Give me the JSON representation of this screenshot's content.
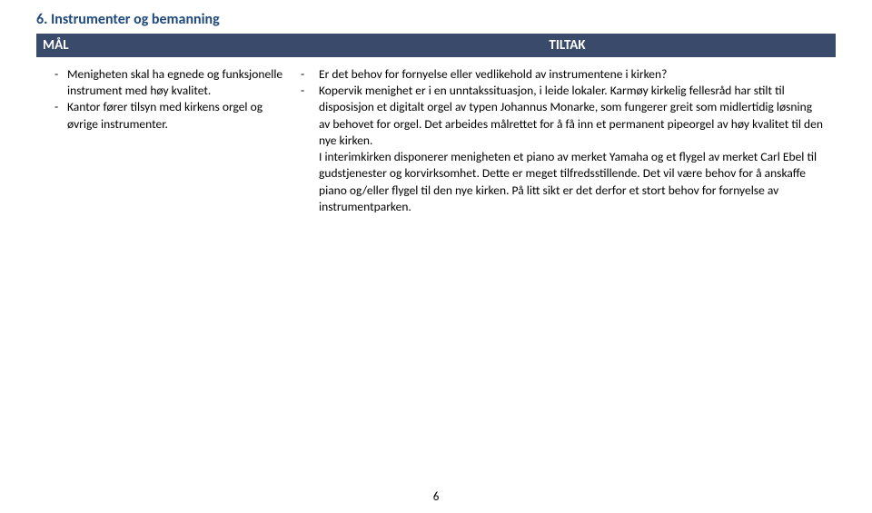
{
  "section": {
    "heading": "6.  Instrumenter og bemanning",
    "heading_color": "#1f497d",
    "header": {
      "left_label": "MÅL",
      "right_label": "TILTAK",
      "bg_color": "#3a4a6b",
      "text_color": "#ffffff"
    },
    "left_items": [
      "Menigheten skal ha egnede og funksjonelle instrument med høy kvalitet.",
      "Kantor fører tilsyn med kirkens orgel og øvrige instrumenter."
    ],
    "right_items": [
      "Er det behov for fornyelse eller vedlikehold av instrumentene i kirken?",
      "Kopervik menighet er i en unntakssituasjon, i leide lokaler. Karmøy kirkelig fellesråd har stilt til disposisjon et digitalt orgel av typen Johannus Monarke, som fungerer greit som midlertidig løsning av behovet for orgel. Det arbeides målrettet for å få inn et permanent pipeorgel av høy kvalitet til den nye kirken.\nI interimkirken disponerer menigheten et piano av merket Yamaha og et flygel av merket Carl Ebel til gudstjenester og korvirksomhet. Dette er meget tilfredsstillende. Det vil være behov for å anskaffe piano og/eller flygel til den nye kirken. På litt sikt er det derfor et stort behov for fornyelse av instrumentparken."
    ]
  },
  "page_number": "6"
}
